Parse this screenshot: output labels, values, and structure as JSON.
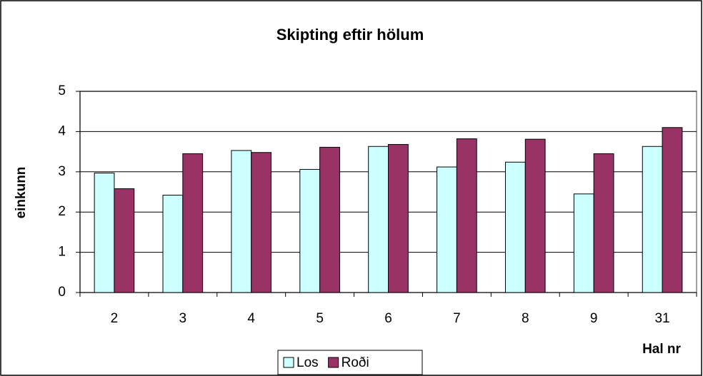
{
  "chart_data": {
    "type": "bar",
    "title": "Skipting eftir hölum",
    "x_label": "Hal nr",
    "y_label": "einkunn",
    "categories": [
      "2",
      "3",
      "4",
      "5",
      "6",
      "7",
      "8",
      "9",
      "31"
    ],
    "series": [
      {
        "name": "Los",
        "color": "#ccffff",
        "values": [
          2.97,
          2.42,
          3.53,
          3.06,
          3.63,
          3.12,
          3.24,
          2.45,
          3.63
        ]
      },
      {
        "name": "Roði",
        "color": "#993366",
        "values": [
          2.58,
          3.45,
          3.48,
          3.61,
          3.68,
          3.82,
          3.81,
          3.45,
          4.1
        ]
      }
    ],
    "ylim": [
      0,
      5
    ],
    "yticks": [
      0,
      1,
      2,
      3,
      4,
      5
    ],
    "grid": true,
    "legend": "bottom"
  }
}
